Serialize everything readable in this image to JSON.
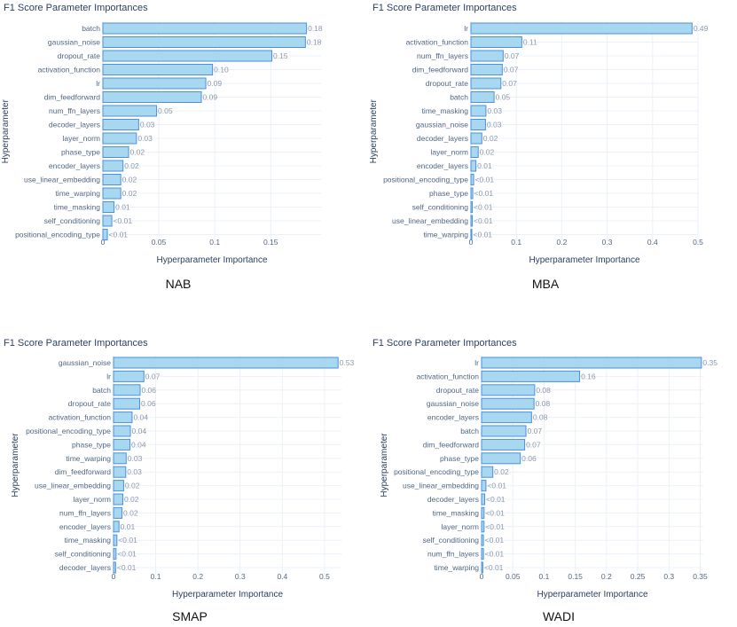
{
  "chart_data": [
    {
      "type": "bar",
      "orientation": "horizontal",
      "title": "F1 Score Parameter Importances",
      "xlabel": "Hyperparameter Importance",
      "ylabel": "Hyperparameter",
      "caption": "NAB",
      "xlim": [
        0,
        0.195
      ],
      "xticks": [
        0,
        0.05,
        0.1,
        0.15
      ],
      "xtick_labels": [
        "0",
        "0.05",
        "0.1",
        "0.15"
      ],
      "categories": [
        "batch",
        "gaussian_noise",
        "dropout_rate",
        "activation_function",
        "lr",
        "dim_feedforward",
        "num_ffn_layers",
        "decoder_layers",
        "layer_norm",
        "phase_type",
        "encoder_layers",
        "use_linear_embedding",
        "time_warping",
        "time_masking",
        "self_conditioning",
        "positional_encoding_type"
      ],
      "values": [
        0.182,
        0.181,
        0.151,
        0.098,
        0.092,
        0.088,
        0.048,
        0.032,
        0.03,
        0.023,
        0.018,
        0.016,
        0.016,
        0.01,
        0.008,
        0.004
      ],
      "value_labels": [
        "0.18",
        "0.18",
        "0.15",
        "0.10",
        "0.09",
        "0.09",
        "0.05",
        "0.03",
        "0.03",
        "0.02",
        "0.02",
        "0.02",
        "0.02",
        "0.01",
        "<0.01",
        "<0.01"
      ]
    },
    {
      "type": "bar",
      "orientation": "horizontal",
      "title": "F1 Score Parameter Importances",
      "xlabel": "Hyperparameter Importance",
      "ylabel": "Hyperparameter",
      "caption": "MBA",
      "xlim": [
        0,
        0.5
      ],
      "xticks": [
        0,
        0.1,
        0.2,
        0.3,
        0.4,
        0.5
      ],
      "xtick_labels": [
        "0",
        "0.1",
        "0.2",
        "0.3",
        "0.4",
        "0.5"
      ],
      "categories": [
        "lr",
        "activation_function",
        "num_ffn_layers",
        "dim_feedforward",
        "dropout_rate",
        "batch",
        "time_masking",
        "gaussian_noise",
        "decoder_layers",
        "layer_norm",
        "encoder_layers",
        "positional_encoding_type",
        "phase_type",
        "self_conditioning",
        "use_linear_embedding",
        "time_warping"
      ],
      "values": [
        0.487,
        0.112,
        0.071,
        0.069,
        0.066,
        0.051,
        0.033,
        0.032,
        0.024,
        0.016,
        0.011,
        0.006,
        0.004,
        0.003,
        0.003,
        0.002
      ],
      "value_labels": [
        "0.49",
        "0.11",
        "0.07",
        "0.07",
        "0.07",
        "0.05",
        "0.03",
        "0.03",
        "0.02",
        "0.02",
        "0.01",
        "<0.01",
        "<0.01",
        "<0.01",
        "<0.01",
        "<0.01"
      ]
    },
    {
      "type": "bar",
      "orientation": "horizontal",
      "title": "F1 Score Parameter Importances",
      "xlabel": "Hyperparameter Importance",
      "ylabel": "Hyperparameter",
      "caption": "SMAP",
      "xlim": [
        0,
        0.54
      ],
      "xticks": [
        0,
        0.1,
        0.2,
        0.3,
        0.4,
        0.5
      ],
      "xtick_labels": [
        "0",
        "0.1",
        "0.2",
        "0.3",
        "0.4",
        "0.5"
      ],
      "categories": [
        "gaussian_noise",
        "lr",
        "batch",
        "dropout_rate",
        "activation_function",
        "positional_encoding_type",
        "phase_type",
        "time_warping",
        "dim_feedforward",
        "use_linear_embedding",
        "layer_norm",
        "num_ffn_layers",
        "encoder_layers",
        "time_masking",
        "self_conditioning",
        "decoder_layers"
      ],
      "values": [
        0.532,
        0.072,
        0.063,
        0.062,
        0.044,
        0.04,
        0.039,
        0.03,
        0.029,
        0.024,
        0.022,
        0.02,
        0.013,
        0.008,
        0.006,
        0.005
      ],
      "value_labels": [
        "0.53",
        "0.07",
        "0.06",
        "0.06",
        "0.04",
        "0.04",
        "0.04",
        "0.03",
        "0.03",
        "0.02",
        "0.02",
        "0.02",
        "0.01",
        "<0.01",
        "<0.01",
        "<0.01"
      ]
    },
    {
      "type": "bar",
      "orientation": "horizontal",
      "title": "F1 Score Parameter Importances",
      "xlabel": "Hyperparameter Importance",
      "ylabel": "Hyperparameter",
      "caption": "WADI",
      "xlim": [
        0,
        0.355
      ],
      "xticks": [
        0,
        0.05,
        0.1,
        0.15,
        0.2,
        0.25,
        0.3,
        0.35
      ],
      "xtick_labels": [
        "0",
        "0.05",
        "0.1",
        "0.15",
        "0.2",
        "0.25",
        "0.3",
        "0.35"
      ],
      "categories": [
        "lr",
        "activation_function",
        "dropout_rate",
        "gaussian_noise",
        "encoder_layers",
        "batch",
        "dim_feedforward",
        "phase_type",
        "positional_encoding_type",
        "use_linear_embedding",
        "decoder_layers",
        "time_masking",
        "layer_norm",
        "self_conditioning",
        "num_ffn_layers",
        "time_warping"
      ],
      "values": [
        0.352,
        0.157,
        0.085,
        0.084,
        0.08,
        0.071,
        0.069,
        0.062,
        0.018,
        0.007,
        0.005,
        0.004,
        0.004,
        0.003,
        0.003,
        0.002
      ],
      "value_labels": [
        "0.35",
        "0.16",
        "0.08",
        "0.08",
        "0.08",
        "0.07",
        "0.07",
        "0.06",
        "0.02",
        "<0.01",
        "<0.01",
        "<0.01",
        "<0.01",
        "<0.01",
        "<0.01",
        "<0.01"
      ]
    }
  ]
}
